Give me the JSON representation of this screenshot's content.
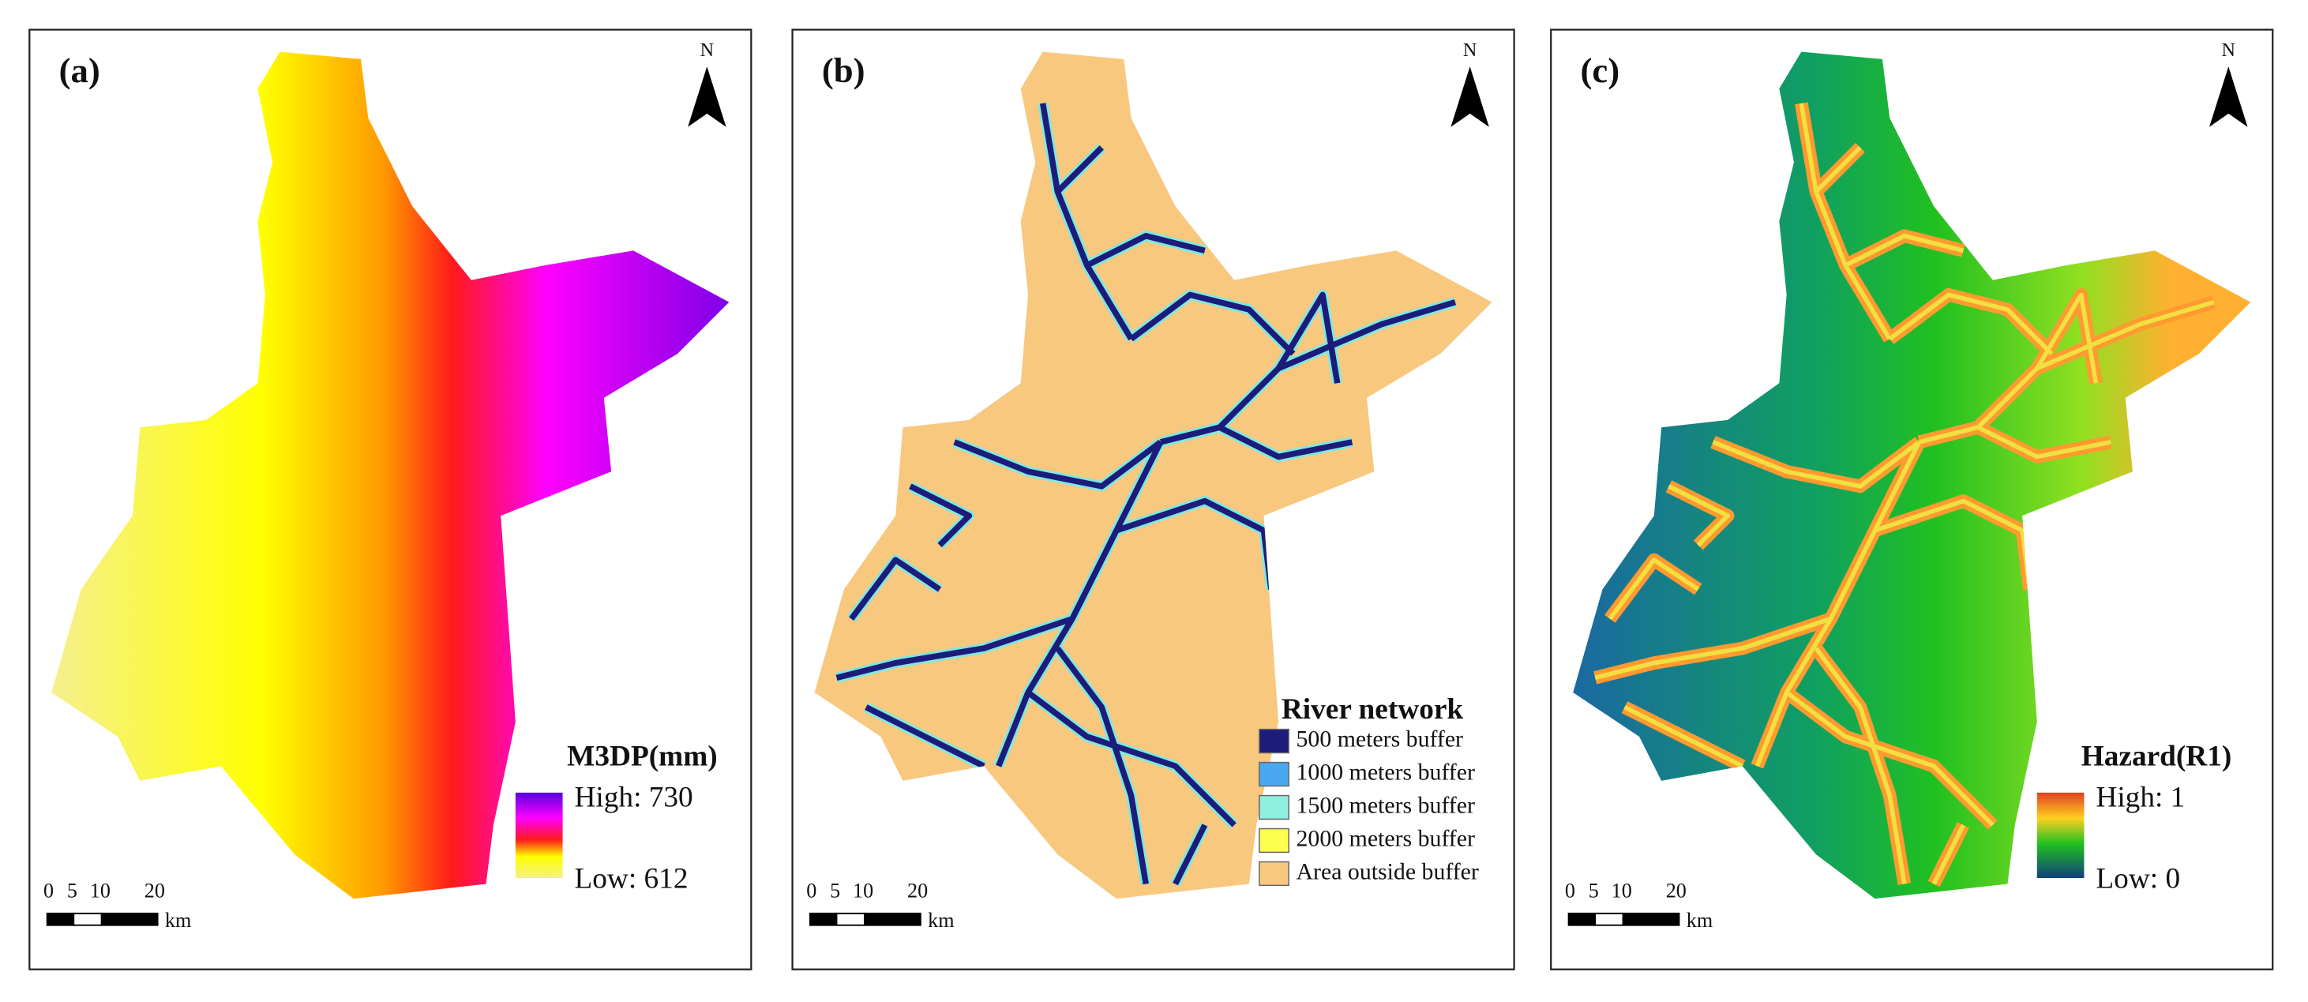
{
  "panels": [
    {
      "label": "(a)",
      "north": "N",
      "scale_bar": {
        "ticks": [
          "0",
          "5",
          "10",
          "20"
        ],
        "unit": "km"
      },
      "legend": {
        "title": "M3DP(mm)",
        "high": "High: 730",
        "low": "Low: 612"
      }
    },
    {
      "label": "(b)",
      "north": "N",
      "scale_bar": {
        "ticks": [
          "0",
          "5",
          "10",
          "20"
        ],
        "unit": "km"
      },
      "legend": {
        "title": "River network",
        "items": [
          "500 meters buffer",
          "1000 meters buffer",
          "1500 meters buffer",
          "2000 meters buffer",
          "Area outside buffer"
        ]
      }
    },
    {
      "label": "(c)",
      "north": "N",
      "scale_bar": {
        "ticks": [
          "0",
          "5",
          "10",
          "20"
        ],
        "unit": "km"
      },
      "legend": {
        "title": "Hazard(R1)",
        "high": "High: 1",
        "low": "Low: 0"
      }
    }
  ]
}
